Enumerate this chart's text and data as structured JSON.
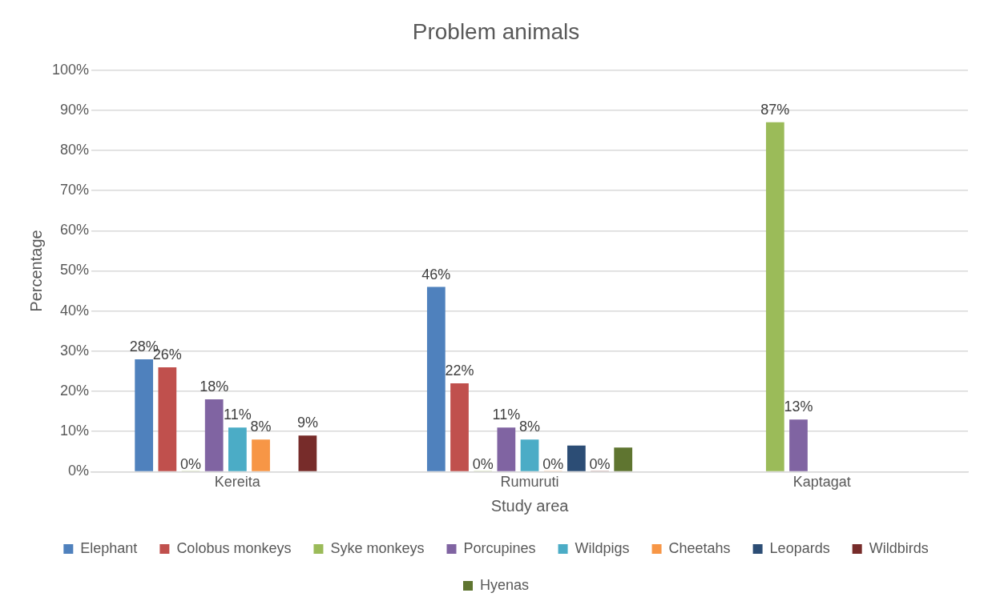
{
  "chart_data": {
    "type": "bar",
    "title": "Problem animals",
    "xlabel": "Study area",
    "ylabel": "Percentage",
    "categories": [
      "Kereita",
      "Rumuruti",
      "Kaptagat"
    ],
    "series": [
      {
        "name": "Elephant",
        "color": "#4f81bd",
        "values": [
          28,
          46,
          null
        ],
        "value_labels": [
          "28%",
          "46%",
          null
        ]
      },
      {
        "name": "Colobus monkeys",
        "color": "#c0504d",
        "values": [
          26,
          22,
          null
        ],
        "value_labels": [
          "26%",
          "22%",
          null
        ]
      },
      {
        "name": "Syke monkeys",
        "color": "#9bbb59",
        "values": [
          0,
          0,
          87
        ],
        "value_labels": [
          "0%",
          "0%",
          "87%"
        ]
      },
      {
        "name": "Porcupines",
        "color": "#8064a2",
        "values": [
          18,
          11,
          13
        ],
        "value_labels": [
          "18%",
          "11%",
          "13%"
        ]
      },
      {
        "name": "Wildpigs",
        "color": "#4bacc6",
        "values": [
          11,
          8,
          null
        ],
        "value_labels": [
          "11%",
          "8%",
          null
        ]
      },
      {
        "name": "Cheetahs",
        "color": "#f79646",
        "values": [
          8,
          0,
          null
        ],
        "value_labels": [
          "8%",
          "0%",
          null
        ]
      },
      {
        "name": "Leopards",
        "color": "#2c4d75",
        "values": [
          null,
          6.5,
          null
        ],
        "value_labels": [
          null,
          null,
          null
        ]
      },
      {
        "name": "Wildbirds",
        "color": "#772c2a",
        "values": [
          9,
          0,
          null
        ],
        "value_labels": [
          "9%",
          "0%",
          null
        ]
      },
      {
        "name": "Hyenas",
        "color": "#5f7530",
        "values": [
          null,
          6,
          null
        ],
        "value_labels": [
          null,
          null,
          null
        ]
      }
    ],
    "ylim": [
      0,
      100
    ],
    "yticks": [
      {
        "value": 0,
        "label": "0%"
      },
      {
        "value": 10,
        "label": "10%"
      },
      {
        "value": 20,
        "label": "20%"
      },
      {
        "value": 30,
        "label": "30%"
      },
      {
        "value": 40,
        "label": "40%"
      },
      {
        "value": 50,
        "label": "50%"
      },
      {
        "value": 60,
        "label": "60%"
      },
      {
        "value": 70,
        "label": "70%"
      },
      {
        "value": 80,
        "label": "80%"
      },
      {
        "value": 90,
        "label": "90%"
      },
      {
        "value": 100,
        "label": "100%"
      }
    ],
    "grid": "y",
    "legend": "bottom"
  }
}
